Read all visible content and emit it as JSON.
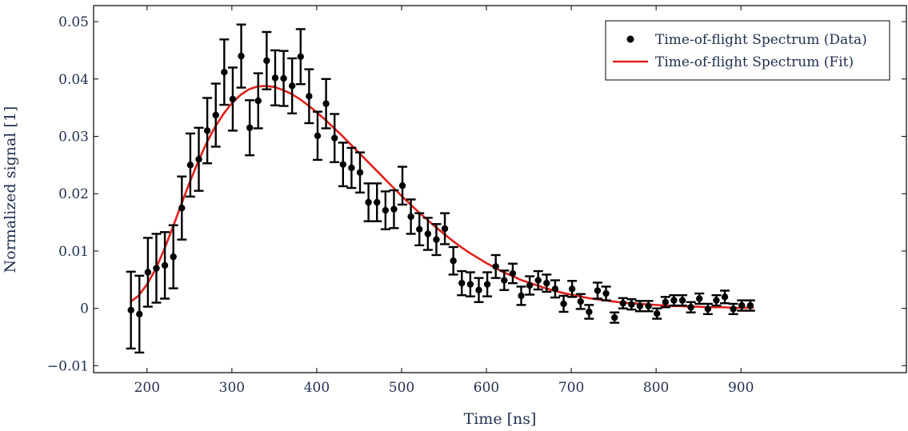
{
  "chart_data": {
    "type": "scatter",
    "title": "",
    "xlabel": "Time [ns]",
    "ylabel": "Normalized signal [1]",
    "xlim": [
      137,
      1095
    ],
    "ylim": [
      -0.0112,
      0.0528
    ],
    "x_ticks": [
      200,
      300,
      400,
      500,
      600,
      700,
      800,
      900
    ],
    "x_tick_labels": [
      "200",
      "300",
      "400",
      "500",
      "600",
      "700",
      "800",
      "900"
    ],
    "y_ticks": [
      -0.01,
      0,
      0.01,
      0.02,
      0.03,
      0.04,
      0.05
    ],
    "y_tick_labels": [
      "−0.01",
      "0",
      "0.01",
      "0.02",
      "0.03",
      "0.04",
      "0.05"
    ],
    "grid": false,
    "legend_position": "top-right",
    "colors": {
      "data": "#000000",
      "fit": "#e0201a",
      "text": "#1f2f4f"
    },
    "series": [
      {
        "name": "Time-of-flight Spectrum (Data)",
        "kind": "points-with-errorbars",
        "x": [
          181,
          191,
          201,
          211,
          221,
          231,
          241,
          251,
          261,
          271,
          281,
          291,
          301,
          311,
          321,
          331,
          341,
          351,
          361,
          371,
          381,
          391,
          401,
          411,
          421,
          431,
          441,
          451,
          461,
          471,
          481,
          491,
          501,
          511,
          521,
          531,
          541,
          551,
          561,
          571,
          581,
          591,
          601,
          611,
          621,
          631,
          641,
          651,
          661,
          671,
          681,
          691,
          701,
          711,
          721,
          731,
          741,
          751,
          761,
          771,
          781,
          791,
          801,
          811,
          821,
          831,
          841,
          851,
          861,
          871,
          881,
          891,
          901,
          911
        ],
        "y": [
          -0.0003,
          -0.001,
          0.0063,
          0.007,
          0.0075,
          0.009,
          0.0175,
          0.025,
          0.026,
          0.031,
          0.0337,
          0.0412,
          0.0365,
          0.044,
          0.0315,
          0.0362,
          0.0432,
          0.0402,
          0.0401,
          0.0388,
          0.0439,
          0.037,
          0.0301,
          0.0357,
          0.0297,
          0.0251,
          0.0245,
          0.0237,
          0.0185,
          0.0185,
          0.0171,
          0.0173,
          0.0214,
          0.016,
          0.0138,
          0.013,
          0.012,
          0.0139,
          0.0083,
          0.0044,
          0.0042,
          0.0032,
          0.0042,
          0.0073,
          0.0049,
          0.0061,
          0.0022,
          0.004,
          0.0049,
          0.0044,
          0.0034,
          0.0008,
          0.0034,
          0.0012,
          -0.0006,
          0.0031,
          0.0026,
          -0.0016,
          0.0009,
          0.0007,
          0.0004,
          0.0004,
          -0.0009,
          0.0011,
          0.0014,
          0.0014,
          0.0002,
          0.0017,
          -0.0001,
          0.0014,
          0.002,
          -0.0001,
          0.0005,
          0.0005
        ],
        "yerr": [
          0.0067,
          0.0067,
          0.006,
          0.006,
          0.0058,
          0.0055,
          0.0055,
          0.0055,
          0.0055,
          0.0057,
          0.0055,
          0.0057,
          0.0055,
          0.0055,
          0.0048,
          0.0048,
          0.005,
          0.0048,
          0.0048,
          0.0048,
          0.0048,
          0.0047,
          0.0042,
          0.0043,
          0.0042,
          0.0038,
          0.0035,
          0.0035,
          0.0033,
          0.0033,
          0.0033,
          0.0033,
          0.0033,
          0.003,
          0.0028,
          0.0028,
          0.0027,
          0.0027,
          0.0024,
          0.0021,
          0.0021,
          0.0021,
          0.0021,
          0.002,
          0.0017,
          0.0017,
          0.0016,
          0.0016,
          0.0016,
          0.0015,
          0.0015,
          0.0014,
          0.0014,
          0.0013,
          0.0012,
          0.0014,
          0.0012,
          0.0009,
          0.0009,
          0.0009,
          0.0009,
          0.0009,
          0.0009,
          0.0009,
          0.0009,
          0.0009,
          0.0009,
          0.0009,
          0.0009,
          0.0009,
          0.0011,
          0.0009,
          0.0009,
          0.0009
        ]
      },
      {
        "name": "Time-of-flight Spectrum (Fit)",
        "kind": "line",
        "x": [
          180,
          190,
          200,
          210,
          220,
          230,
          240,
          250,
          260,
          270,
          280,
          290,
          300,
          310,
          320,
          330,
          340,
          350,
          360,
          370,
          380,
          390,
          400,
          410,
          420,
          430,
          440,
          450,
          460,
          470,
          480,
          490,
          500,
          510,
          520,
          530,
          540,
          550,
          560,
          570,
          580,
          590,
          600,
          610,
          620,
          630,
          640,
          650,
          660,
          670,
          680,
          690,
          700,
          710,
          720,
          730,
          740,
          750,
          760,
          770,
          780,
          790,
          800,
          810,
          820,
          830,
          840,
          850,
          860,
          870,
          880,
          890,
          900,
          910,
          915
        ],
        "y": [
          0.0011,
          0.0022,
          0.0042,
          0.0068,
          0.0102,
          0.014,
          0.018,
          0.0219,
          0.0255,
          0.0288,
          0.0316,
          0.0339,
          0.0358,
          0.0372,
          0.0382,
          0.0387,
          0.0388,
          0.0386,
          0.0381,
          0.0374,
          0.0365,
          0.0354,
          0.0342,
          0.0329,
          0.0315,
          0.0301,
          0.0286,
          0.0271,
          0.0256,
          0.0241,
          0.0226,
          0.0211,
          0.0196,
          0.0182,
          0.0168,
          0.0155,
          0.0142,
          0.013,
          0.0118,
          0.0107,
          0.0097,
          0.0088,
          0.0079,
          0.0071,
          0.0063,
          0.0057,
          0.005,
          0.0045,
          0.004,
          0.0035,
          0.0031,
          0.0027,
          0.0024,
          0.0021,
          0.0018,
          0.0016,
          0.0014,
          0.0012,
          0.001,
          0.0009,
          0.0008,
          0.0007,
          0.0006,
          0.0005,
          0.0004,
          0.0004,
          0.0003,
          0.0003,
          0.0002,
          0.0002,
          0.0002,
          0.0001,
          0.0001,
          0.0001,
          0.0001
        ]
      }
    ]
  }
}
